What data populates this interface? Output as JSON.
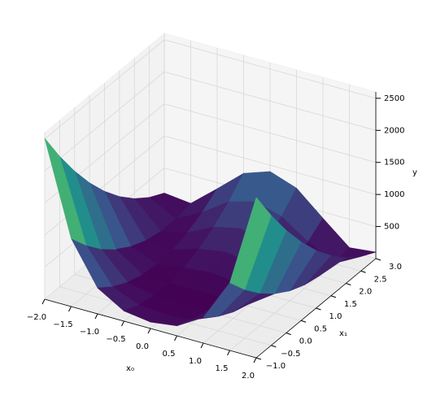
{
  "chart_data": {
    "type": "surface",
    "colormap": "viridis",
    "xlabel": "x₀",
    "ylabel": "x₁",
    "zlabel": "y",
    "x0": [
      -2,
      -1.5,
      -1,
      -0.5,
      0,
      0.5,
      1,
      1.5,
      2
    ],
    "x1": [
      -1,
      -0.5,
      0,
      0.5,
      1,
      1.5,
      2,
      2.5,
      3
    ],
    "z": [
      [
        2509,
        1062.5,
        404,
        158.5,
        101,
        156.5,
        400,
        1056.5,
        2501
      ],
      [
        2034,
        762.5,
        229,
        58.5,
        26,
        56.5,
        225,
        756.5,
        2026
      ],
      [
        1609,
        512.5,
        104,
        8.5,
        1,
        6.5,
        100,
        506.5,
        1601
      ],
      [
        1234,
        312.5,
        29,
        8.5,
        26,
        6.5,
        25,
        306.5,
        1226
      ],
      [
        909,
        162.5,
        4,
        58.5,
        101,
        56.5,
        0,
        156.5,
        901
      ],
      [
        634,
        62.5,
        29,
        158.5,
        226,
        156.5,
        25,
        56.5,
        626
      ],
      [
        409,
        12.5,
        104,
        308.5,
        401,
        306.5,
        100,
        6.5,
        401
      ],
      [
        234,
        12.5,
        229,
        508.5,
        626,
        506.5,
        225,
        6.5,
        226
      ],
      [
        109,
        62.5,
        404,
        758.5,
        901,
        756.5,
        400,
        56.5,
        101
      ]
    ],
    "xlim": [
      -2,
      2
    ],
    "ylim": [
      -1,
      3
    ],
    "zlim": [
      0,
      2600
    ],
    "xticks": [
      {
        "value": -2,
        "label": "−2.0"
      },
      {
        "value": -1.5,
        "label": "−1.5"
      },
      {
        "value": -1,
        "label": "−1.0"
      },
      {
        "value": -0.5,
        "label": "−0.5"
      },
      {
        "value": 0,
        "label": "0.0"
      },
      {
        "value": 0.5,
        "label": "0.5"
      },
      {
        "value": 1,
        "label": "1.0"
      },
      {
        "value": 1.5,
        "label": "1.5"
      },
      {
        "value": 2,
        "label": "2.0"
      }
    ],
    "yticks": [
      {
        "value": -1,
        "label": "−1.0"
      },
      {
        "value": -0.5,
        "label": "−0.5"
      },
      {
        "value": 0,
        "label": "0.0"
      },
      {
        "value": 0.5,
        "label": "0.5"
      },
      {
        "value": 1,
        "label": "1.0"
      },
      {
        "value": 1.5,
        "label": "1.5"
      },
      {
        "value": 2,
        "label": "2.0"
      },
      {
        "value": 2.5,
        "label": "2.5"
      },
      {
        "value": 3,
        "label": "3.0"
      }
    ],
    "zticks": [
      500,
      1000,
      1500,
      2000,
      2500
    ],
    "grid": true
  }
}
